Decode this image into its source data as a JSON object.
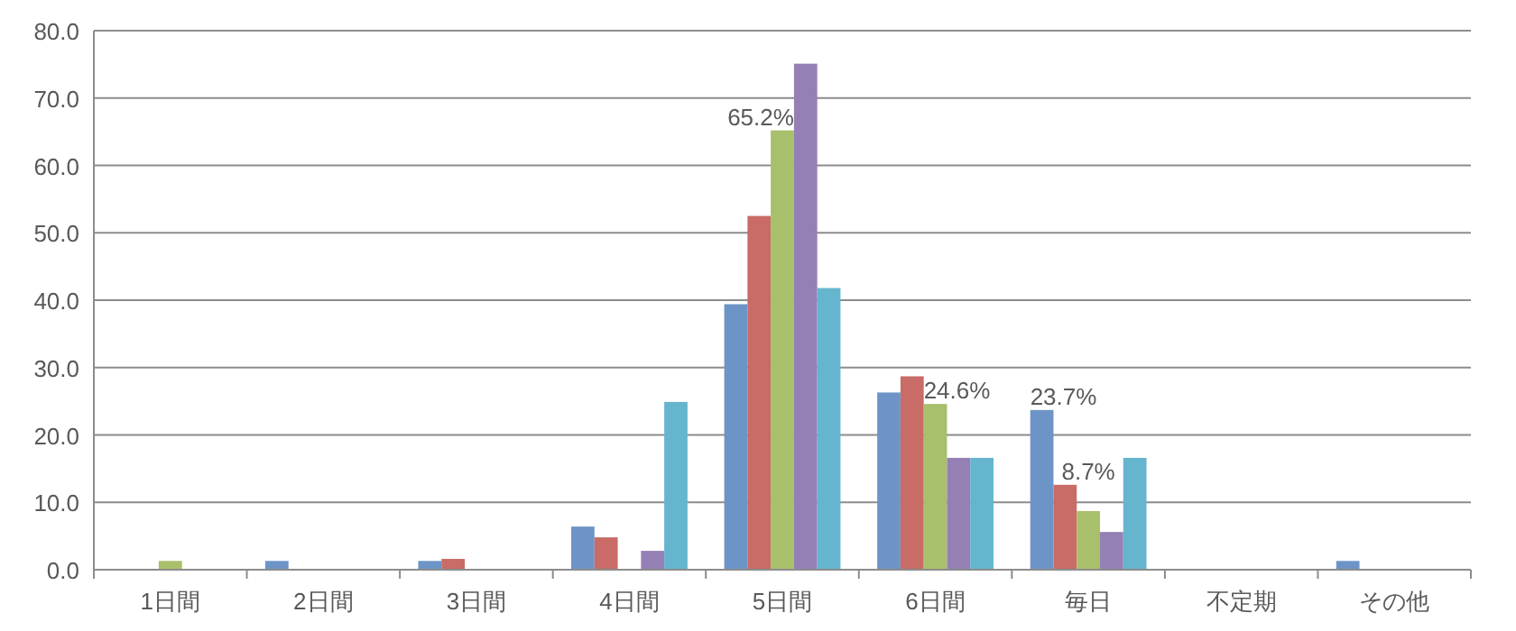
{
  "chart_data": {
    "type": "bar",
    "categories": [
      "1日間",
      "2日間",
      "3日間",
      "4日間",
      "5日間",
      "6日間",
      "毎日",
      "不定期",
      "その他"
    ],
    "series": [
      {
        "color": "#6d94c7",
        "values": [
          0,
          1.3,
          1.3,
          6.4,
          39.4,
          26.3,
          23.7,
          0,
          1.3
        ],
        "value_labels": [
          null,
          null,
          null,
          null,
          null,
          null,
          "23.7%",
          null,
          null
        ]
      },
      {
        "color": "#c96b67",
        "values": [
          0,
          0,
          1.6,
          4.8,
          52.5,
          28.7,
          12.6,
          0,
          0
        ]
      },
      {
        "color": "#a8c06b",
        "values": [
          1.3,
          0,
          0,
          0,
          65.2,
          24.6,
          8.7,
          0,
          0
        ],
        "value_labels": [
          null,
          null,
          null,
          null,
          "65.2%",
          "24.6%",
          "8.7%",
          null,
          null
        ]
      },
      {
        "color": "#9580b5",
        "values": [
          0,
          0,
          0,
          2.8,
          75.1,
          16.6,
          5.6,
          0,
          0
        ]
      },
      {
        "color": "#66b5cf",
        "values": [
          0,
          0,
          0,
          24.9,
          41.8,
          16.6,
          16.6,
          0,
          0
        ]
      }
    ],
    "ylim": [
      0,
      80
    ],
    "yticks": [
      {
        "value": 0,
        "label": "0.0"
      },
      {
        "value": 10,
        "label": "10.0"
      },
      {
        "value": 20,
        "label": "20.0"
      },
      {
        "value": 30,
        "label": "30.0"
      },
      {
        "value": 40,
        "label": "40.0"
      },
      {
        "value": 50,
        "label": "50.0"
      },
      {
        "value": 60,
        "label": "60.0"
      },
      {
        "value": 70,
        "label": "70.0"
      },
      {
        "value": 80,
        "label": "80.0"
      }
    ],
    "grid": "y"
  }
}
